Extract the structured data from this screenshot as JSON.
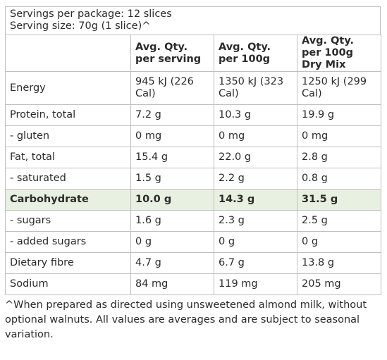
{
  "header": {
    "servings_per_package": "Servings per package: 12 slices",
    "serving_size": "Serving size: 70g (1 slice)^"
  },
  "columns": [
    "",
    "Avg. Qty. per serving",
    "Avg. Qty. per 100g",
    "Avg. Qty. per 100g Dry Mix"
  ],
  "rows": [
    {
      "label": "Energy",
      "serving": "945 kJ (226 Cal)",
      "per100": "1350 kJ (323 Cal)",
      "dry": "1250 kJ (299 Cal)"
    },
    {
      "label": "Protein, total",
      "serving": "7.2 g",
      "per100": "10.3 g",
      "dry": "19.9 g"
    },
    {
      "label": "- gluten",
      "serving": "0 mg",
      "per100": "0 mg",
      "dry": "0 mg"
    },
    {
      "label": "Fat, total",
      "serving": "15.4 g",
      "per100": "22.0 g",
      "dry": "2.8 g"
    },
    {
      "label": "- saturated",
      "serving": "1.5 g",
      "per100": "2.2 g",
      "dry": "0.8 g"
    },
    {
      "label": "Carbohydrate",
      "serving": "10.0 g",
      "per100": "14.3 g",
      "dry": "31.5 g"
    },
    {
      "label": "- sugars",
      "serving": "1.6 g",
      "per100": "2.3 g",
      "dry": "2.5 g"
    },
    {
      "label": "- added sugars",
      "serving": "0 g",
      "per100": "0 g",
      "dry": "0 g"
    },
    {
      "label": "Dietary fibre",
      "serving": "4.7 g",
      "per100": "6.7 g",
      "dry": "13.8 g"
    },
    {
      "label": "Sodium",
      "serving": "84 mg",
      "per100": "119 mg",
      "dry": "205 mg"
    }
  ],
  "footnote": "^When prepared as directed using unsweetened almond milk, without optional walnuts. All values are averages and are subject to seasonal variation.",
  "colors": {
    "highlight_row": "#e8f1e1",
    "border": "#bfbfbf",
    "text": "#2b2b2b"
  }
}
